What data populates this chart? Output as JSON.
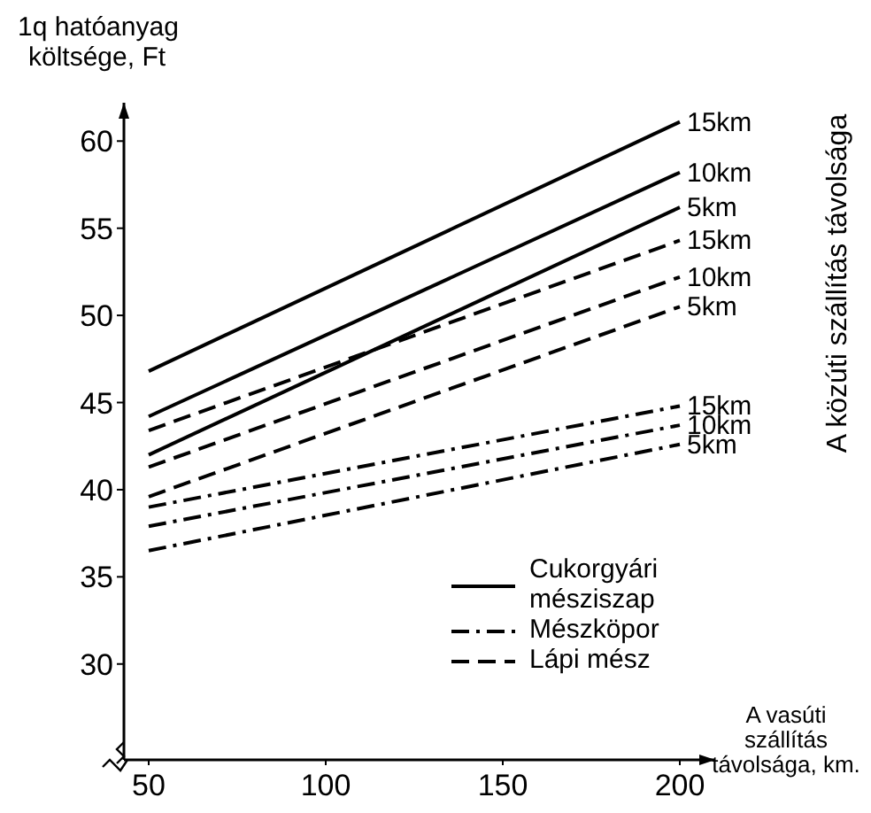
{
  "chart_data": {
    "type": "line",
    "ylabel": "1q hatóanyag\nköltsége, Ft",
    "xlabel": "A vasúti\nszállítás\ntávolsága, km.",
    "y2label": "A közúti szállítás távolsága",
    "x": [
      50,
      200
    ],
    "xlim": [
      43,
      210
    ],
    "xticks": [
      50,
      100,
      150,
      200
    ],
    "ylim": [
      24.5,
      62.2
    ],
    "yticks": [
      30,
      35,
      40,
      45,
      50,
      55,
      60
    ],
    "grid": false,
    "annotations": [
      "Cukorgyári\nmésziszap",
      "Mészköpor",
      "Lápi mész"
    ],
    "series": [
      {
        "name": "15km",
        "color": "#000000",
        "line_style": "solid",
        "values": [
          46.8,
          61.1
        ]
      },
      {
        "name": "10km",
        "color": "#000000",
        "line_style": "solid",
        "values": [
          44.2,
          58.2
        ]
      },
      {
        "name": "5km",
        "color": "#000000",
        "line_style": "solid",
        "values": [
          42.0,
          56.2
        ]
      },
      {
        "name": "15km",
        "color": "#000000",
        "line_style": "dashed",
        "values": [
          43.4,
          54.3
        ]
      },
      {
        "name": "10km",
        "color": "#000000",
        "line_style": "dashed",
        "values": [
          41.3,
          52.2
        ]
      },
      {
        "name": "5km",
        "color": "#000000",
        "line_style": "dashed",
        "values": [
          39.6,
          50.5
        ]
      },
      {
        "name": "15km",
        "color": "#000000",
        "line_style": "dashdot",
        "values": [
          39.0,
          44.8
        ]
      },
      {
        "name": "10km",
        "color": "#000000",
        "line_style": "dashdot",
        "values": [
          37.9,
          43.7
        ]
      },
      {
        "name": "5km",
        "color": "#000000",
        "line_style": "dashdot",
        "values": [
          36.5,
          42.6
        ]
      }
    ]
  }
}
